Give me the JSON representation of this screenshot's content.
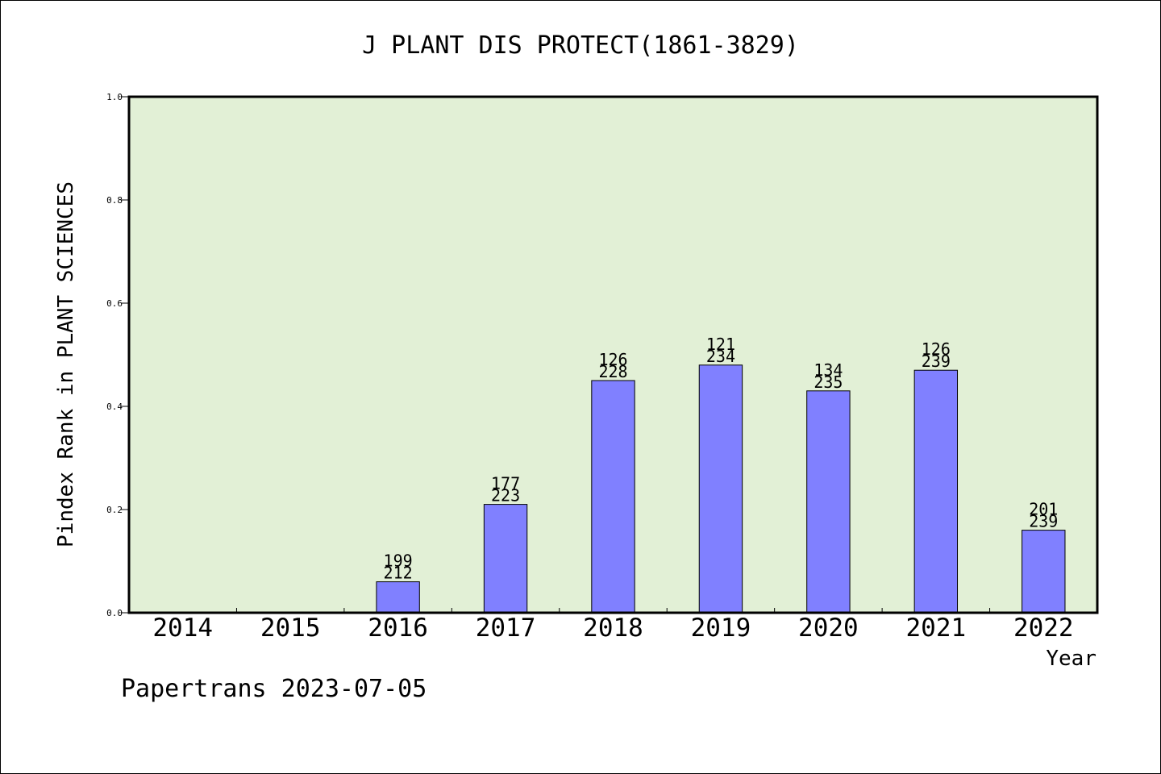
{
  "chart_data": {
    "type": "bar",
    "title": "J PLANT DIS PROTECT(1861-3829)",
    "xlabel": "Year",
    "ylabel": "Pindex Rank in PLANT SCIENCES",
    "ylim": [
      0,
      1.0
    ],
    "yticks": [
      "0.0",
      "0.2",
      "0.4",
      "0.6",
      "0.8",
      "1.0"
    ],
    "categories": [
      "2014",
      "2015",
      "2016",
      "2017",
      "2018",
      "2019",
      "2020",
      "2021",
      "2022"
    ],
    "values": [
      null,
      null,
      0.06,
      0.21,
      0.45,
      0.48,
      0.43,
      0.47,
      0.16
    ],
    "rank_labels": [
      "",
      "",
      "199",
      "177",
      "126",
      "121",
      "134",
      "126",
      "201"
    ],
    "total_labels": [
      "",
      "",
      "212",
      "223",
      "228",
      "234",
      "235",
      "239",
      "239"
    ],
    "grid": false,
    "colors": {
      "plot_bg": "#e2f0d6",
      "bar": "#8080ff"
    },
    "footer": "Papertrans 2023-07-05"
  }
}
